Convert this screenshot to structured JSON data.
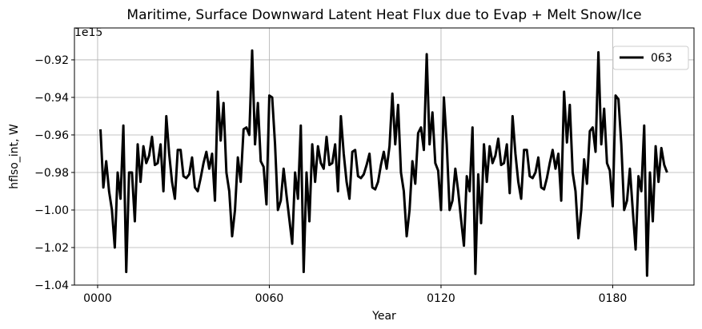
{
  "chart_data": {
    "type": "line",
    "title": "Maritime, Surface Downward Latent Heat Flux due to Evap + Melt Snow/Ice",
    "x_label": "Year",
    "y_label": "hflso_int, W",
    "y_offset_label": "1e15",
    "x": [
      1,
      2,
      3,
      4,
      5,
      6,
      7,
      8,
      9,
      10,
      11,
      12,
      13,
      14,
      15,
      16,
      17,
      18,
      19,
      20,
      21,
      22,
      23,
      24,
      25,
      26,
      27,
      28,
      29,
      30,
      31,
      32,
      33,
      34,
      35,
      36,
      37,
      38,
      39,
      40,
      41,
      42,
      43,
      44,
      45,
      46,
      47,
      48,
      49,
      50,
      51,
      52,
      53,
      54,
      55,
      56,
      57,
      58,
      59,
      60,
      61,
      62,
      63,
      64,
      65,
      66,
      67,
      68,
      69,
      70,
      71,
      72,
      73,
      74,
      75,
      76,
      77,
      78,
      79,
      80,
      81,
      82,
      83,
      84,
      85,
      86,
      87,
      88,
      89,
      90,
      91,
      92,
      93,
      94,
      95,
      96,
      97,
      98,
      99,
      100,
      101,
      102,
      103,
      104,
      105,
      106,
      107,
      108,
      109,
      110,
      111,
      112,
      113,
      114,
      115,
      116,
      117,
      118,
      119,
      120,
      121,
      122,
      123,
      124,
      125,
      126,
      127,
      128,
      129,
      130,
      131,
      132,
      133,
      134,
      135,
      136,
      137,
      138,
      139,
      140,
      141,
      142,
      143,
      144,
      145,
      146,
      147,
      148,
      149,
      150,
      151,
      152,
      153,
      154,
      155,
      156,
      157,
      158,
      159,
      160,
      161,
      162,
      163,
      164,
      165,
      166,
      167,
      168,
      169,
      170,
      171,
      172,
      173,
      174,
      175,
      176,
      177,
      178,
      179,
      180,
      181,
      182,
      183,
      184,
      185,
      186,
      187,
      188,
      189,
      190,
      191,
      192,
      193,
      194,
      195,
      196,
      197,
      198,
      199
    ],
    "series": [
      {
        "name": "063",
        "color": "#000000",
        "values": [
          -0.957,
          -0.988,
          -0.974,
          -0.99,
          -1.0,
          -1.02,
          -0.98,
          -0.994,
          -0.955,
          -1.033,
          -0.98,
          -0.98,
          -1.006,
          -0.965,
          -0.985,
          -0.966,
          -0.975,
          -0.971,
          -0.961,
          -0.976,
          -0.975,
          -0.965,
          -0.99,
          -0.95,
          -0.97,
          -0.985,
          -0.994,
          -0.968,
          -0.968,
          -0.982,
          -0.983,
          -0.981,
          -0.972,
          -0.988,
          -0.99,
          -0.983,
          -0.975,
          -0.969,
          -0.978,
          -0.97,
          -0.995,
          -0.937,
          -0.963,
          -0.943,
          -0.98,
          -0.99,
          -1.014,
          -1.0,
          -0.972,
          -0.985,
          -0.957,
          -0.956,
          -0.96,
          -0.915,
          -0.965,
          -0.943,
          -0.974,
          -0.977,
          -0.997,
          -0.939,
          -0.94,
          -0.965,
          -1.0,
          -0.995,
          -0.978,
          -0.992,
          -1.005,
          -1.018,
          -0.98,
          -0.994,
          -0.955,
          -1.033,
          -0.98,
          -1.006,
          -0.965,
          -0.985,
          -0.966,
          -0.975,
          -0.978,
          -0.961,
          -0.976,
          -0.975,
          -0.965,
          -0.99,
          -0.95,
          -0.97,
          -0.985,
          -0.994,
          -0.969,
          -0.968,
          -0.982,
          -0.983,
          -0.981,
          -0.976,
          -0.97,
          -0.988,
          -0.989,
          -0.985,
          -0.976,
          -0.969,
          -0.978,
          -0.966,
          -0.938,
          -0.965,
          -0.944,
          -0.98,
          -0.99,
          -1.014,
          -1.0,
          -0.974,
          -0.986,
          -0.959,
          -0.956,
          -0.968,
          -0.917,
          -0.965,
          -0.948,
          -0.975,
          -0.979,
          -1.0,
          -0.94,
          -0.965,
          -1.0,
          -0.995,
          -0.978,
          -0.99,
          -1.005,
          -1.019,
          -0.982,
          -0.99,
          -0.956,
          -1.034,
          -0.981,
          -1.007,
          -0.965,
          -0.985,
          -0.966,
          -0.975,
          -0.971,
          -0.962,
          -0.976,
          -0.975,
          -0.965,
          -0.991,
          -0.95,
          -0.97,
          -0.985,
          -0.994,
          -0.968,
          -0.968,
          -0.982,
          -0.983,
          -0.98,
          -0.972,
          -0.988,
          -0.989,
          -0.983,
          -0.975,
          -0.968,
          -0.978,
          -0.97,
          -0.995,
          -0.937,
          -0.964,
          -0.944,
          -0.98,
          -0.99,
          -1.015,
          -1.0,
          -0.973,
          -0.986,
          -0.958,
          -0.956,
          -0.969,
          -0.916,
          -0.965,
          -0.946,
          -0.975,
          -0.979,
          -0.998,
          -0.939,
          -0.941,
          -0.965,
          -1.0,
          -0.995,
          -0.978,
          -1.0,
          -1.021,
          -0.982,
          -0.99,
          -0.955,
          -1.035,
          -0.98,
          -1.006,
          -0.966,
          -0.985,
          -0.967,
          -0.976,
          -0.98
        ]
      }
    ],
    "xlim": [
      -8.1,
      208.4
    ],
    "ylim": [
      -1.04,
      -0.903
    ],
    "xticks": [
      {
        "value": 0,
        "label": "0000"
      },
      {
        "value": 60,
        "label": "0060"
      },
      {
        "value": 120,
        "label": "0120"
      },
      {
        "value": 180,
        "label": "0180"
      }
    ],
    "yticks": [
      {
        "value": -1.04,
        "label": "−1.04"
      },
      {
        "value": -1.02,
        "label": "−1.02"
      },
      {
        "value": -1.0,
        "label": "−1.00"
      },
      {
        "value": -0.98,
        "label": "−0.98"
      },
      {
        "value": -0.96,
        "label": "−0.96"
      },
      {
        "value": -0.94,
        "label": "−0.94"
      },
      {
        "value": -0.92,
        "label": "−0.92"
      }
    ],
    "grid": true,
    "legend_position": "upper right"
  }
}
